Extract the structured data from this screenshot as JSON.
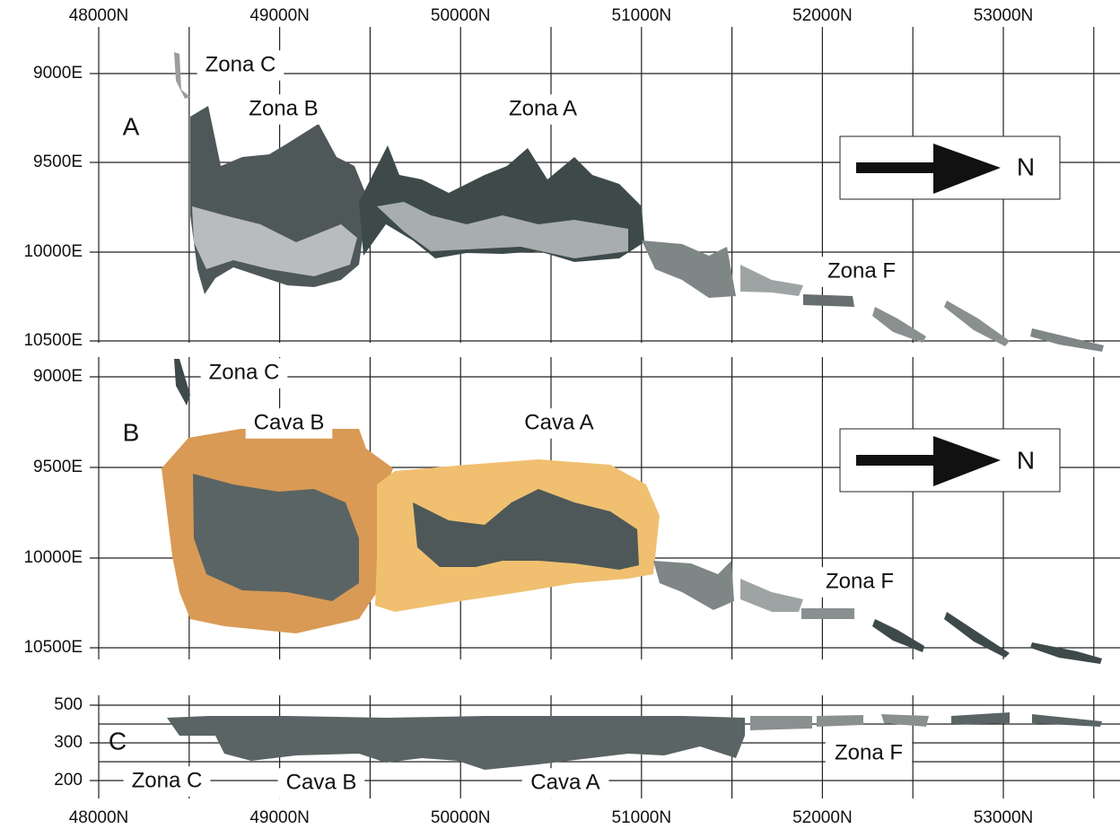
{
  "x_labels": [
    "48000N",
    "49000N",
    "50000N",
    "51000N",
    "52000N",
    "53000N"
  ],
  "panels": [
    {
      "label": "A",
      "y_labels": [
        "9000E",
        "9500E",
        "10000E",
        "10500E"
      ],
      "annotations": [
        "Zona C",
        "Zona B",
        "Zona A",
        "Zona F"
      ],
      "north": "N"
    },
    {
      "label": "B",
      "y_labels": [
        "9000E",
        "9500E",
        "10000E",
        "10500E"
      ],
      "annotations": [
        "Zona C",
        "Cava B",
        "Cava A",
        "Zona F"
      ],
      "north": "N"
    },
    {
      "label": "C",
      "y_labels": [
        "500",
        "300",
        "200"
      ],
      "annotations": [
        "Zona C",
        "Cava B",
        "Cava A",
        "Zona F"
      ]
    }
  ]
}
